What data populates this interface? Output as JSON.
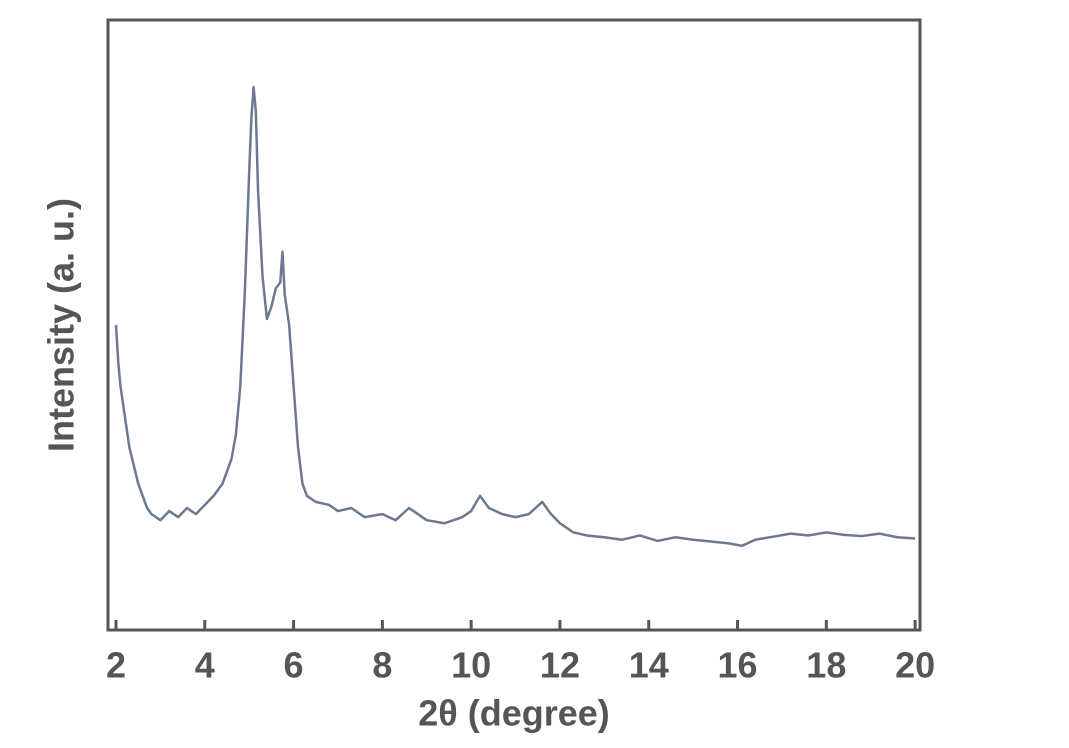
{
  "chart_data": {
    "type": "line",
    "x_label": "2θ (degree)",
    "y_label": "Intensity (a. u.)",
    "x": [
      2,
      2.05,
      2.1,
      2.2,
      2.3,
      2.4,
      2.5,
      2.6,
      2.7,
      2.8,
      3,
      3.2,
      3.4,
      3.6,
      3.8,
      4,
      4.2,
      4.4,
      4.6,
      4.7,
      4.8,
      4.9,
      5,
      5.05,
      5.1,
      5.15,
      5.2,
      5.3,
      5.4,
      5.5,
      5.6,
      5.7,
      5.75,
      5.8,
      5.9,
      6,
      6.1,
      6.2,
      6.3,
      6.5,
      6.8,
      7,
      7.3,
      7.6,
      8,
      8.3,
      8.6,
      9,
      9.4,
      9.8,
      10,
      10.2,
      10.4,
      10.7,
      11,
      11.3,
      11.6,
      11.8,
      12,
      12.3,
      12.6,
      13,
      13.4,
      13.8,
      14.2,
      14.6,
      15,
      15.4,
      15.8,
      16.1,
      16.4,
      16.8,
      17.2,
      17.6,
      18,
      18.4,
      18.8,
      19.2,
      19.6,
      20
    ],
    "values": [
      50,
      44,
      40,
      35,
      30,
      27,
      24,
      22,
      20,
      19,
      18,
      19.5,
      18.5,
      20,
      19,
      20.5,
      22,
      24,
      28,
      32,
      40,
      55,
      75,
      84,
      89,
      85,
      72,
      58,
      51,
      53,
      56,
      57,
      62,
      55,
      50,
      40,
      30,
      24,
      22,
      21,
      20.5,
      19.5,
      20,
      18.5,
      19,
      18,
      20,
      18,
      17.5,
      18.5,
      19.5,
      22,
      20,
      19,
      18.5,
      19,
      21,
      19,
      17.5,
      16,
      15.5,
      15.2,
      14.8,
      15.5,
      14.6,
      15.2,
      14.8,
      14.5,
      14.2,
      13.8,
      14.8,
      15.3,
      15.8,
      15.5,
      16,
      15.6,
      15.4,
      15.8,
      15.2,
      15
    ],
    "color": "#6b7a90",
    "xlim": [
      1.82,
      20.11
    ],
    "xticks": [
      2,
      4,
      6,
      8,
      10,
      12,
      14,
      16,
      18,
      20
    ],
    "ylim": [
      0,
      100
    ]
  }
}
